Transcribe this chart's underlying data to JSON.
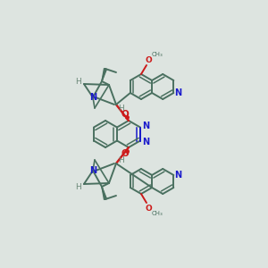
{
  "bg_color": "#dde4e0",
  "bond_color": "#4a7060",
  "bond_width": 1.4,
  "n_color": "#1a1acc",
  "o_color": "#cc1a1a",
  "h_color": "#6a8878",
  "figsize": [
    3.0,
    3.0
  ],
  "dpi": 100,
  "xlim": [
    0,
    300
  ],
  "ylim": [
    0,
    300
  ]
}
